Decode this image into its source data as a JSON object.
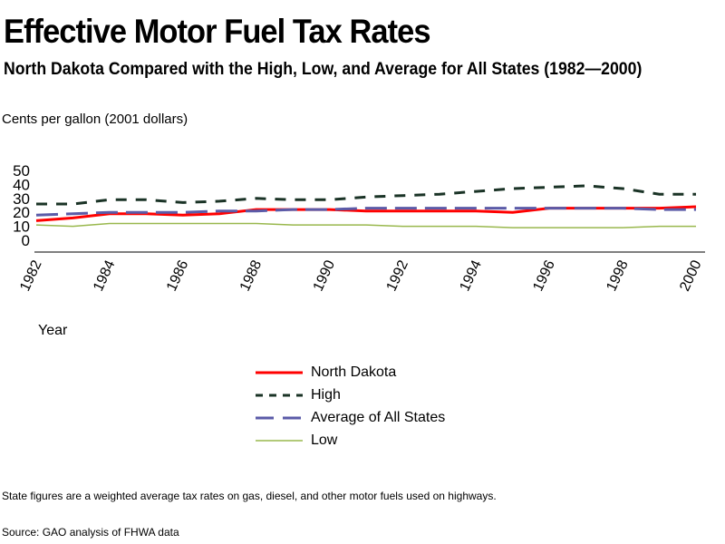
{
  "title": "Effective Motor Fuel Tax Rates",
  "subtitle": "North Dakota Compared with the High, Low, and Average for All States (1982—2000)",
  "units": "Cents per gallon   (2001 dollars)",
  "note": "State figures are a weighted average tax rates on gas, diesel, and other motor fuels used on highways.",
  "source": "Source: GAO analysis of FHWA data",
  "chart_data": {
    "type": "line",
    "title": "Effective Motor Fuel Tax Rates",
    "xlabel": "Year",
    "ylabel": "Cents per gallon (2001 dollars)",
    "ylim": [
      0,
      50
    ],
    "yticks": [
      "0",
      "10",
      "20",
      "30",
      "40",
      "50"
    ],
    "ytick_values": [
      0,
      10,
      20,
      30,
      40,
      50
    ],
    "x": [
      1982,
      1983,
      1984,
      1985,
      1986,
      1987,
      1988,
      1989,
      1990,
      1991,
      1992,
      1993,
      1994,
      1995,
      1996,
      1997,
      1998,
      1999,
      2000
    ],
    "xticks": [
      "1982",
      "1984",
      "1986",
      "1988",
      "1990",
      "1992",
      "1994",
      "1996",
      "1998",
      "2000"
    ],
    "xtick_values": [
      1982,
      1984,
      1986,
      1988,
      1990,
      1992,
      1994,
      1996,
      1998,
      2000
    ],
    "grid": false,
    "legend_position": "bottom-center",
    "series": [
      {
        "name": "North Dakota",
        "color": "#ff0000",
        "style": "solid",
        "values": [
          14,
          16,
          19,
          19,
          18,
          19,
          22,
          22,
          22,
          21,
          21,
          21,
          21,
          20,
          23,
          23,
          23,
          23,
          24
        ]
      },
      {
        "name": "High",
        "color": "#1a3326",
        "style": "dashed",
        "values": [
          26,
          26,
          29,
          29,
          27,
          28,
          30,
          29,
          29,
          31,
          32,
          33,
          35,
          37,
          38,
          39,
          37,
          33,
          33
        ]
      },
      {
        "name": "Average of All States",
        "color": "#5b5ba8",
        "style": "longdash",
        "values": [
          18,
          19,
          20,
          20,
          20,
          21,
          21,
          22,
          22,
          23,
          23,
          23,
          23,
          23,
          23,
          23,
          23,
          22,
          22
        ]
      },
      {
        "name": "Low",
        "color": "#99b84d",
        "style": "solid-thin",
        "values": [
          11,
          10,
          12,
          12,
          12,
          12,
          12,
          11,
          11,
          11,
          10,
          10,
          10,
          9,
          9,
          9,
          9,
          10,
          10
        ]
      }
    ]
  }
}
